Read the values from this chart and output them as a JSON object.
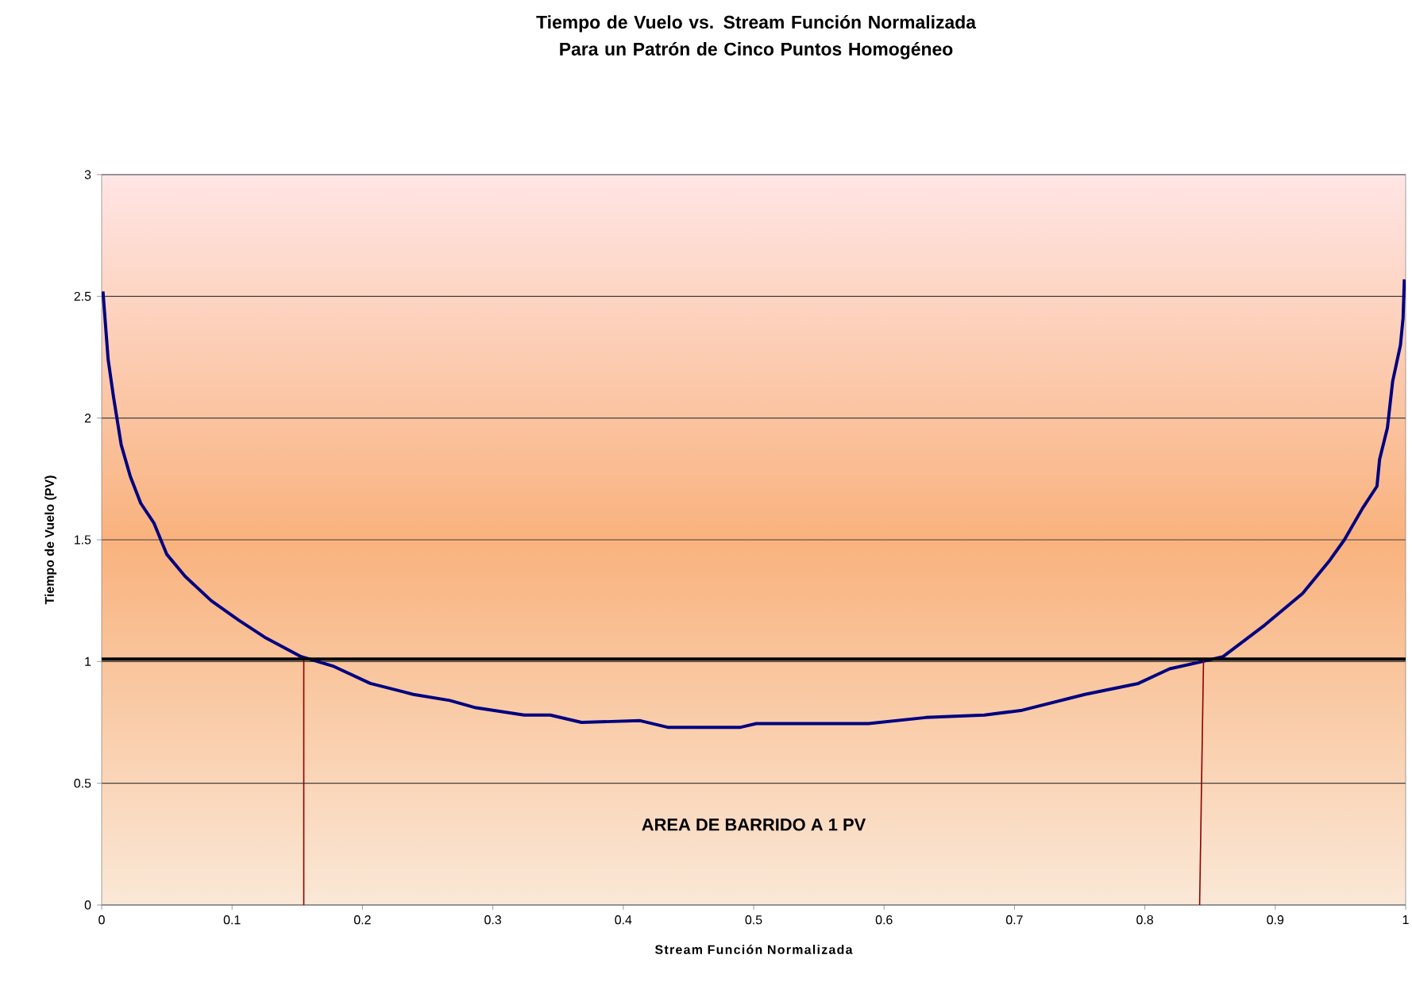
{
  "chart_data": {
    "type": "line",
    "title": "Tiempo de Vuelo vs. Stream Función Normalizada Para un Patrón de Cinco Puntos Homogéneo",
    "xlabel": "Stream Función Normalizada",
    "ylabel": "Tiempo de Vuelo (PV)",
    "annotations": [
      "AREA DE BARRIDO A 1 PV"
    ],
    "xlim": [
      0,
      1
    ],
    "xticks": [
      0,
      0.1,
      0.2,
      0.3,
      0.4,
      0.5,
      0.6,
      0.7,
      0.8,
      0.9,
      1
    ],
    "ylim": [
      0,
      3
    ],
    "yticks": [
      0,
      0.5,
      1,
      1.5,
      2,
      2.5,
      3
    ],
    "grid": "y",
    "marker": "none",
    "line_style": "solid",
    "ref_lines": [
      {
        "axis": "y",
        "value": 1.01,
        "color": "#000000"
      }
    ],
    "series": [
      {
        "color": "#000080",
        "x": [
          0.001,
          0.005,
          0.009,
          0.015,
          0.022,
          0.03,
          0.04,
          0.05,
          0.064,
          0.084,
          0.105,
          0.125,
          0.153,
          0.178,
          0.206,
          0.239,
          0.267,
          0.287,
          0.324,
          0.344,
          0.368,
          0.413,
          0.434,
          0.49,
          0.502,
          0.588,
          0.632,
          0.677,
          0.706,
          0.754,
          0.795,
          0.819,
          0.844,
          0.86,
          0.892,
          0.921,
          0.941,
          0.953,
          0.967,
          0.978,
          0.98,
          0.986,
          0.99,
          0.996,
          0.998,
          0.999
        ],
        "values": [
          2.52,
          2.24,
          2.09,
          1.89,
          1.76,
          1.65,
          1.57,
          1.44,
          1.35,
          1.25,
          1.17,
          1.1,
          1.02,
          0.98,
          0.91,
          0.865,
          0.84,
          0.81,
          0.78,
          0.78,
          0.75,
          0.757,
          0.73,
          0.73,
          0.745,
          0.745,
          0.77,
          0.78,
          0.8,
          0.865,
          0.91,
          0.97,
          1.0,
          1.02,
          1.15,
          1.28,
          1.41,
          1.5,
          1.63,
          1.72,
          1.83,
          1.96,
          2.15,
          2.3,
          2.41,
          2.57
        ]
      },
      {
        "color": "#8b0000",
        "x": [
          0.155,
          0.155
        ],
        "values": [
          0,
          1.01
        ]
      },
      {
        "color": "#8b0000",
        "x": [
          0.842,
          0.845
        ],
        "values": [
          0,
          1.01
        ]
      }
    ]
  }
}
